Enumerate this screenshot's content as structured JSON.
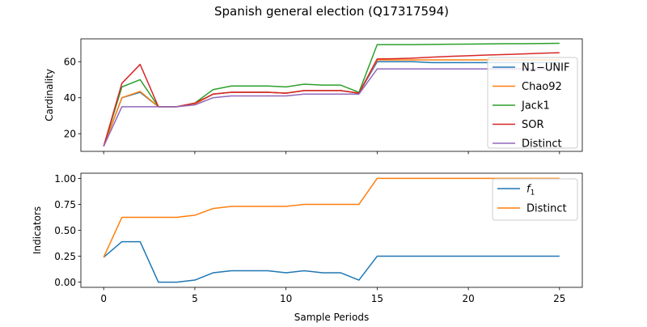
{
  "figure_title": "Spanish general election (Q17317594)",
  "chart_data": [
    {
      "type": "line",
      "ylabel": "Cardinality",
      "xlabel": "",
      "xlim": [
        -1.25,
        26.25
      ],
      "ylim": [
        10.2,
        72.7
      ],
      "x_ticks": [
        0,
        5,
        10,
        15,
        20,
        25
      ],
      "y_ticks": [
        20,
        40,
        60
      ],
      "grid": false,
      "legend_position": "right",
      "x": [
        0,
        1,
        2,
        3,
        4,
        5,
        6,
        7,
        8,
        9,
        10,
        11,
        12,
        13,
        14,
        15,
        16,
        17,
        18,
        19,
        20,
        21,
        22,
        23,
        24,
        25
      ],
      "series": [
        {
          "name": "N1−UNIF",
          "color": "#1f77b4",
          "values": [
            13,
            40,
            43,
            35,
            35,
            36.5,
            42,
            43,
            43,
            43,
            42.5,
            44,
            44,
            44,
            42.5,
            60,
            60,
            60,
            59.5,
            59.5,
            59.5,
            59.5,
            59.5,
            59.5,
            59.5,
            59.5
          ]
        },
        {
          "name": "Chao92",
          "color": "#ff7f0e",
          "values": [
            13,
            40,
            43.5,
            35,
            35,
            36.5,
            42,
            43,
            43,
            43,
            42.5,
            44,
            44,
            44,
            42.5,
            61,
            61,
            61,
            61,
            61,
            61,
            61,
            61,
            61,
            61,
            61
          ]
        },
        {
          "name": "Jack1",
          "color": "#2ca02c",
          "values": [
            13,
            46,
            50,
            35,
            35,
            37,
            44.5,
            46.5,
            46.5,
            46.5,
            46,
            47.5,
            47,
            47,
            43,
            69.5,
            69.5,
            69.5,
            69.6,
            69.7,
            69.8,
            69.9,
            70,
            70,
            70.1,
            70.2
          ]
        },
        {
          "name": "SOR",
          "color": "#d62728",
          "values": [
            13,
            48,
            58.5,
            35,
            35,
            37,
            42,
            43,
            43,
            43,
            42.5,
            44,
            44,
            44,
            42.5,
            61.5,
            61.7,
            62,
            62.5,
            63,
            63.3,
            63.7,
            64,
            64.3,
            64.7,
            65
          ]
        },
        {
          "name": "Distinct",
          "color": "#9467bd",
          "values": [
            13,
            35,
            35,
            35,
            35,
            36,
            40,
            41,
            41,
            41,
            41,
            42,
            42,
            42,
            42,
            56,
            56,
            56,
            56,
            56,
            56,
            56,
            56,
            56,
            56,
            56
          ]
        }
      ]
    },
    {
      "type": "line",
      "ylabel": "Indicators",
      "xlabel": "Sample Periods",
      "xlim": [
        -1.25,
        26.25
      ],
      "ylim": [
        -0.05,
        1.05
      ],
      "x_ticks": [
        0,
        5,
        10,
        15,
        20,
        25
      ],
      "y_ticks": [
        0.0,
        0.25,
        0.5,
        0.75,
        1.0
      ],
      "grid": false,
      "legend_position": "upper right",
      "x": [
        0,
        1,
        2,
        3,
        4,
        5,
        6,
        7,
        8,
        9,
        10,
        11,
        12,
        13,
        14,
        15,
        16,
        17,
        18,
        19,
        20,
        21,
        22,
        23,
        24,
        25
      ],
      "series": [
        {
          "name": "f_1",
          "color": "#1f77b4",
          "values": [
            0.24,
            0.39,
            0.39,
            0,
            0,
            0.02,
            0.09,
            0.11,
            0.11,
            0.11,
            0.09,
            0.11,
            0.09,
            0.09,
            0.02,
            0.25,
            0.25,
            0.25,
            0.25,
            0.25,
            0.25,
            0.25,
            0.25,
            0.25,
            0.25,
            0.25
          ]
        },
        {
          "name": "Distinct",
          "color": "#ff7f0e",
          "values": [
            0.24,
            0.625,
            0.625,
            0.625,
            0.625,
            0.645,
            0.71,
            0.73,
            0.73,
            0.73,
            0.73,
            0.75,
            0.75,
            0.75,
            0.75,
            1,
            1,
            1,
            1,
            1,
            1,
            1,
            1,
            1,
            1,
            1
          ]
        }
      ]
    }
  ]
}
